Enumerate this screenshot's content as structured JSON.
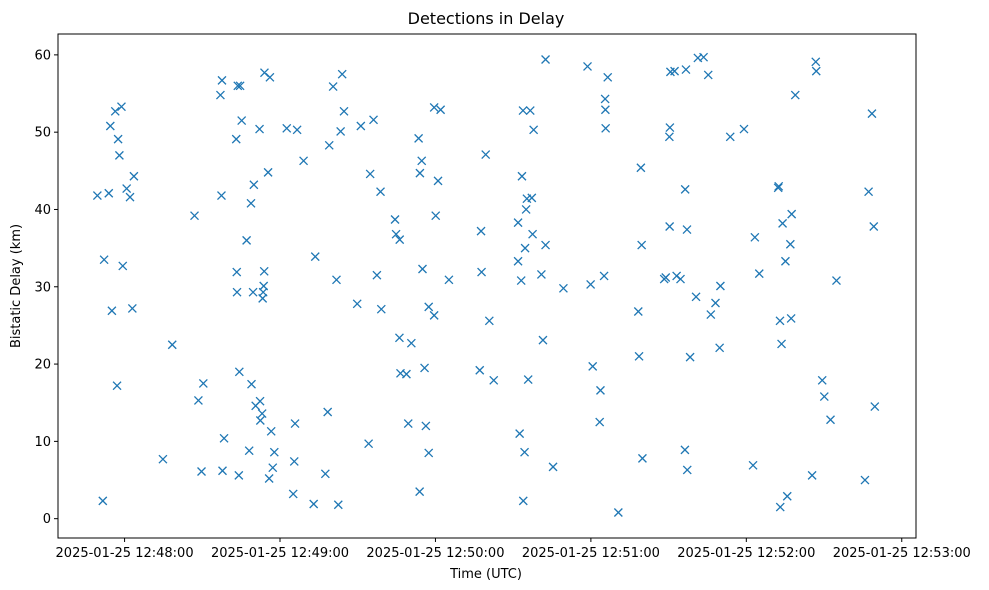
{
  "chart_data": {
    "type": "scatter",
    "title": "Detections in Delay",
    "xlabel": "Time (UTC)",
    "ylabel": "Bistatic Delay (km)",
    "x_unit": "seconds after 2025-01-25 12:48:00",
    "xlim": [
      -25.7,
      305.5
    ],
    "ylim": [
      -2.5,
      62.7
    ],
    "x_ticks": [
      {
        "value": 0,
        "label": "2025-01-25 12:48:00"
      },
      {
        "value": 60,
        "label": "2025-01-25 12:49:00"
      },
      {
        "value": 120,
        "label": "2025-01-25 12:50:00"
      },
      {
        "value": 180,
        "label": "2025-01-25 12:51:00"
      },
      {
        "value": 240,
        "label": "2025-01-25 12:52:00"
      },
      {
        "value": 300,
        "label": "2025-01-25 12:53:00"
      }
    ],
    "y_ticks": [
      {
        "value": 0,
        "label": "0"
      },
      {
        "value": 10,
        "label": "10"
      },
      {
        "value": 20,
        "label": "20"
      },
      {
        "value": 30,
        "label": "30"
      },
      {
        "value": 40,
        "label": "40"
      },
      {
        "value": 50,
        "label": "50"
      },
      {
        "value": 60,
        "label": "60"
      }
    ],
    "marker": "x",
    "color": "#1f77b4",
    "series": [
      {
        "name": "detections",
        "points": [
          [
            -10.5,
            41.8
          ],
          [
            -8.4,
            2.3
          ],
          [
            -7.9,
            33.5
          ],
          [
            -6.1,
            42.1
          ],
          [
            -5.5,
            50.8
          ],
          [
            -4.9,
            26.9
          ],
          [
            -3.6,
            52.7
          ],
          [
            -2.9,
            17.2
          ],
          [
            -2.5,
            49.1
          ],
          [
            -2.0,
            47.0
          ],
          [
            -1.2,
            53.3
          ],
          [
            -0.7,
            32.7
          ],
          [
            0.8,
            42.7
          ],
          [
            2.1,
            41.6
          ],
          [
            3.0,
            27.2
          ],
          [
            3.6,
            44.3
          ],
          [
            14.8,
            7.7
          ],
          [
            18.4,
            22.5
          ],
          [
            27.0,
            39.2
          ],
          [
            28.5,
            15.3
          ],
          [
            29.7,
            6.1
          ],
          [
            30.4,
            17.5
          ],
          [
            37.0,
            54.8
          ],
          [
            37.4,
            41.8
          ],
          [
            37.6,
            56.7
          ],
          [
            37.8,
            6.2
          ],
          [
            38.4,
            10.4
          ],
          [
            43.1,
            49.1
          ],
          [
            43.3,
            31.9
          ],
          [
            43.4,
            29.3
          ],
          [
            43.7,
            56.0
          ],
          [
            44.1,
            5.6
          ],
          [
            44.3,
            19.0
          ],
          [
            44.6,
            56.0
          ],
          [
            45.2,
            51.5
          ],
          [
            47.1,
            36.0
          ],
          [
            48.1,
            8.8
          ],
          [
            48.8,
            40.8
          ],
          [
            49.0,
            17.4
          ],
          [
            49.6,
            29.3
          ],
          [
            49.9,
            43.2
          ],
          [
            50.6,
            14.6
          ],
          [
            52.1,
            50.4
          ],
          [
            52.3,
            15.2
          ],
          [
            52.4,
            12.7
          ],
          [
            53.1,
            13.6
          ],
          [
            53.3,
            28.5
          ],
          [
            53.5,
            29.3
          ],
          [
            53.7,
            30.1
          ],
          [
            53.9,
            32.0
          ],
          [
            54.0,
            57.7
          ],
          [
            55.4,
            44.8
          ],
          [
            55.8,
            5.2
          ],
          [
            56.1,
            57.1
          ],
          [
            56.6,
            11.3
          ],
          [
            57.2,
            6.6
          ],
          [
            57.8,
            8.6
          ],
          [
            62.6,
            50.5
          ],
          [
            65.1,
            3.2
          ],
          [
            65.5,
            7.4
          ],
          [
            65.8,
            12.3
          ],
          [
            66.6,
            50.3
          ],
          [
            69.1,
            46.3
          ],
          [
            73.0,
            1.9
          ],
          [
            73.6,
            33.9
          ],
          [
            77.5,
            5.8
          ],
          [
            78.4,
            13.8
          ],
          [
            79.0,
            48.3
          ],
          [
            80.5,
            55.9
          ],
          [
            81.8,
            30.9
          ],
          [
            82.5,
            1.8
          ],
          [
            83.4,
            50.1
          ],
          [
            84.0,
            57.5
          ],
          [
            84.7,
            52.7
          ],
          [
            89.8,
            27.8
          ],
          [
            91.2,
            50.8
          ],
          [
            94.2,
            9.7
          ],
          [
            94.8,
            44.6
          ],
          [
            96.1,
            51.6
          ],
          [
            97.4,
            31.5
          ],
          [
            98.8,
            42.3
          ],
          [
            99.1,
            27.1
          ],
          [
            104.4,
            38.7
          ],
          [
            104.8,
            36.8
          ],
          [
            106.1,
            23.4
          ],
          [
            106.2,
            36.1
          ],
          [
            106.5,
            18.8
          ],
          [
            108.8,
            18.7
          ],
          [
            109.5,
            12.3
          ],
          [
            110.7,
            22.7
          ],
          [
            113.5,
            49.2
          ],
          [
            113.9,
            3.5
          ],
          [
            114.0,
            44.7
          ],
          [
            114.7,
            46.3
          ],
          [
            115.0,
            32.3
          ],
          [
            115.8,
            19.5
          ],
          [
            116.3,
            12.0
          ],
          [
            117.4,
            27.4
          ],
          [
            117.4,
            8.5
          ],
          [
            119.5,
            53.2
          ],
          [
            119.5,
            26.3
          ],
          [
            120.1,
            39.2
          ],
          [
            121.0,
            43.7
          ],
          [
            122.0,
            52.9
          ],
          [
            125.2,
            30.9
          ],
          [
            137.1,
            19.2
          ],
          [
            137.6,
            37.2
          ],
          [
            137.8,
            31.9
          ],
          [
            139.4,
            47.1
          ],
          [
            140.8,
            25.6
          ],
          [
            142.5,
            17.9
          ],
          [
            151.9,
            38.3
          ],
          [
            151.9,
            33.3
          ],
          [
            152.5,
            11.0
          ],
          [
            153.1,
            30.8
          ],
          [
            153.4,
            44.3
          ],
          [
            153.8,
            52.8
          ],
          [
            153.9,
            2.3
          ],
          [
            154.4,
            8.6
          ],
          [
            154.6,
            35.0
          ],
          [
            155.0,
            40.0
          ],
          [
            155.3,
            41.4
          ],
          [
            155.8,
            18.0
          ],
          [
            156.6,
            52.8
          ],
          [
            157.2,
            41.5
          ],
          [
            157.5,
            36.8
          ],
          [
            157.9,
            50.3
          ],
          [
            160.9,
            31.6
          ],
          [
            161.5,
            23.1
          ],
          [
            162.5,
            59.4
          ],
          [
            162.5,
            35.4
          ],
          [
            165.4,
            6.7
          ],
          [
            169.4,
            29.8
          ],
          [
            178.7,
            58.5
          ],
          [
            179.9,
            30.3
          ],
          [
            180.7,
            19.7
          ],
          [
            183.4,
            12.5
          ],
          [
            183.7,
            16.6
          ],
          [
            185.1,
            31.4
          ],
          [
            185.5,
            54.3
          ],
          [
            185.6,
            52.9
          ],
          [
            185.7,
            50.5
          ],
          [
            186.5,
            57.1
          ],
          [
            190.6,
            0.8
          ],
          [
            198.3,
            26.8
          ],
          [
            198.6,
            21.0
          ],
          [
            199.3,
            45.4
          ],
          [
            199.6,
            35.4
          ],
          [
            199.9,
            7.8
          ],
          [
            208.3,
            31.0
          ],
          [
            208.9,
            31.2
          ],
          [
            210.3,
            49.4
          ],
          [
            210.4,
            37.8
          ],
          [
            210.5,
            50.6
          ],
          [
            210.7,
            57.8
          ],
          [
            212.3,
            57.9
          ],
          [
            213.1,
            31.4
          ],
          [
            214.6,
            31.0
          ],
          [
            216.3,
            8.9
          ],
          [
            216.4,
            42.6
          ],
          [
            216.7,
            58.1
          ],
          [
            217.1,
            37.4
          ],
          [
            217.2,
            6.3
          ],
          [
            218.3,
            20.9
          ],
          [
            220.6,
            28.7
          ],
          [
            221.3,
            59.6
          ],
          [
            223.5,
            59.7
          ],
          [
            225.3,
            57.4
          ],
          [
            226.3,
            26.4
          ],
          [
            228.1,
            27.9
          ],
          [
            229.7,
            22.1
          ],
          [
            230.0,
            30.1
          ],
          [
            233.8,
            49.4
          ],
          [
            239.1,
            50.4
          ],
          [
            242.6,
            6.9
          ],
          [
            243.3,
            36.4
          ],
          [
            245.0,
            31.7
          ],
          [
            252.3,
            42.8
          ],
          [
            252.5,
            43.0
          ],
          [
            253.0,
            25.6
          ],
          [
            253.1,
            1.5
          ],
          [
            253.6,
            22.6
          ],
          [
            254.0,
            38.2
          ],
          [
            255.1,
            33.3
          ],
          [
            255.8,
            2.9
          ],
          [
            257.0,
            35.5
          ],
          [
            257.3,
            25.9
          ],
          [
            257.5,
            39.4
          ],
          [
            258.9,
            54.8
          ],
          [
            265.4,
            5.6
          ],
          [
            266.8,
            59.1
          ],
          [
            267.0,
            57.9
          ],
          [
            269.3,
            17.9
          ],
          [
            270.1,
            15.8
          ],
          [
            272.5,
            12.8
          ],
          [
            274.8,
            30.8
          ],
          [
            285.8,
            5.0
          ],
          [
            287.2,
            42.3
          ],
          [
            288.5,
            52.4
          ],
          [
            289.2,
            37.8
          ],
          [
            289.6,
            14.5
          ]
        ]
      }
    ]
  }
}
